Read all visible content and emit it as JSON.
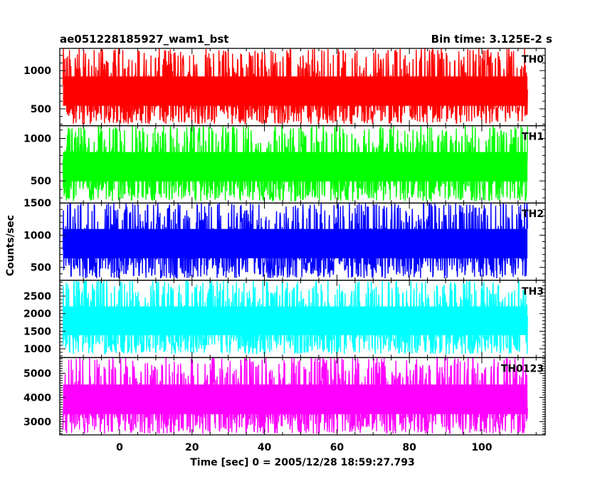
{
  "header": {
    "title_left": "ae051228185927_wam1_bst",
    "title_right": "Bin time: 3.125E-2 s"
  },
  "chart_data": {
    "type": "line",
    "xlabel": "Time [sec] 0 = 2005/12/28 18:59:27.793",
    "ylabel": "Counts/sec",
    "xlim": [
      -16.5,
      117.5
    ],
    "x_range": [
      -15.6,
      112.6
    ],
    "bin_time_s": 0.03125,
    "xticks": [
      0,
      20,
      40,
      60,
      80,
      100
    ],
    "panels": [
      {
        "name": "TH0",
        "color": "#ff0000",
        "ylim": [
          280,
          1290
        ],
        "yticks": [
          500,
          1000
        ],
        "ytick_labels": [
          "500",
          "1000"
        ],
        "low": 300,
        "base": 700,
        "high": 1290
      },
      {
        "name": "TH1",
        "color": "#00ff00",
        "ylim": [
          240,
          1150
        ],
        "yticks": [
          500,
          1000
        ],
        "ytick_labels": [
          "500",
          "1000"
        ],
        "low": 260,
        "base": 650,
        "high": 1150
      },
      {
        "name": "TH2",
        "color": "#0000ff",
        "ylim": [
          300,
          1500
        ],
        "yticks": [
          500,
          1000,
          1500
        ],
        "ytick_labels": [
          "500",
          "1000",
          "1500"
        ],
        "low": 330,
        "base": 850,
        "high": 1500
      },
      {
        "name": "TH3",
        "color": "#00ffff",
        "ylim": [
          750,
          2950
        ],
        "yticks": [
          1000,
          1500,
          2000,
          2500
        ],
        "ytick_labels": [
          "1000",
          "1500",
          "2000",
          "2500"
        ],
        "low": 850,
        "base": 1750,
        "high": 2950
      },
      {
        "name": "TH0123",
        "color": "#ff00ff",
        "ylim": [
          2450,
          5650
        ],
        "yticks": [
          3000,
          4000,
          5000
        ],
        "ytick_labels": [
          "3000",
          "4000",
          "5000"
        ],
        "low": 2500,
        "base": 3850,
        "high": 5650
      }
    ]
  }
}
